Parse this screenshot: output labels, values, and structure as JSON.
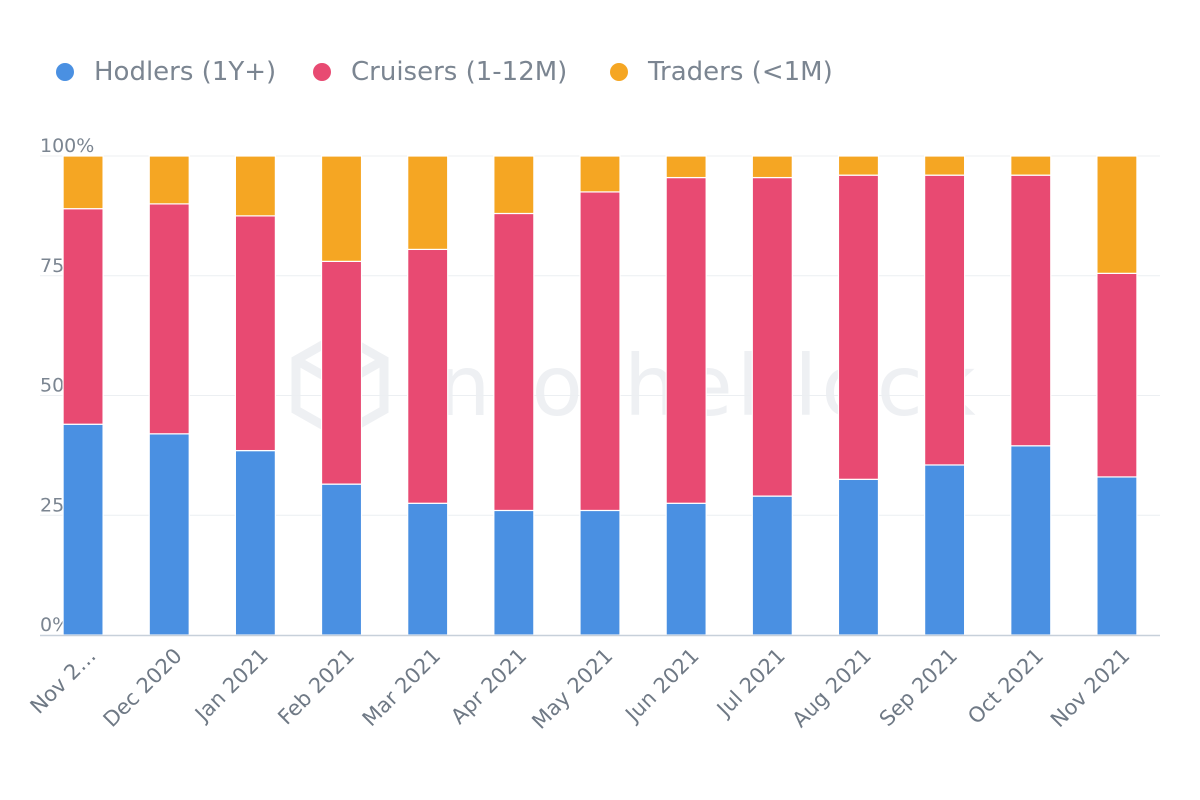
{
  "chart_data": {
    "type": "bar",
    "stacked": true,
    "normalized_percent": true,
    "categories": [
      "Nov 2…",
      "Dec 2020",
      "Jan 2021",
      "Feb 2021",
      "Mar 2021",
      "Apr 2021",
      "May 2021",
      "Jun 2021",
      "Jul 2021",
      "Aug 2021",
      "Sep 2021",
      "Oct 2021",
      "Nov 2021"
    ],
    "series": [
      {
        "name": "Hodlers (1Y+)",
        "color": "#4a90e2",
        "values": [
          44,
          42,
          38.5,
          31.5,
          27.5,
          26,
          26,
          27.5,
          29,
          32.5,
          35.5,
          39.5,
          33
        ]
      },
      {
        "name": "Cruisers (1-12M)",
        "color": "#e84a72",
        "values": [
          45,
          48,
          49,
          46.5,
          53,
          62,
          66.5,
          68,
          66.5,
          63.5,
          60.5,
          56.5,
          42.5
        ]
      },
      {
        "name": "Traders (<1M)",
        "color": "#f5a623",
        "values": [
          11,
          10,
          12.5,
          22,
          19.5,
          12,
          7.5,
          4.5,
          4.5,
          4,
          4,
          4,
          24.5
        ]
      }
    ],
    "y_ticks": [
      "0%",
      "25%",
      "50%",
      "75%",
      "100%"
    ],
    "ylim": [
      0,
      100
    ],
    "grid": true,
    "legend_position": "top-left",
    "watermark": "intotheblock"
  }
}
